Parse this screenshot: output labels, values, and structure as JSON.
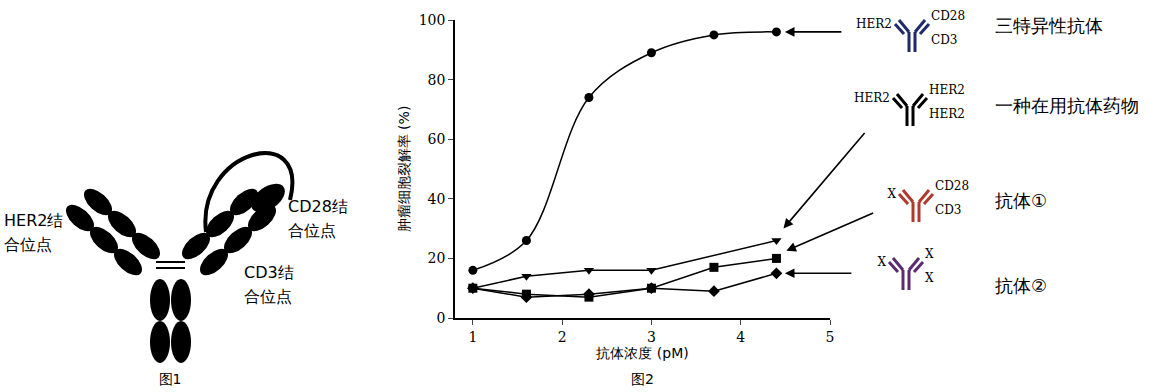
{
  "figure1": {
    "caption": "图1",
    "labels": {
      "her2": [
        "HER2结",
        "合位点"
      ],
      "cd28": [
        "CD28结",
        "合位点"
      ],
      "cd3": [
        "CD3结",
        "合位点"
      ]
    }
  },
  "chart_data": {
    "type": "line",
    "caption": "图2",
    "x_label": "抗体浓度 (pM)",
    "y_label": "肿瘤细胞裂解率 (%)",
    "x": [
      1,
      1.6,
      2.3,
      3,
      3.7,
      4.4
    ],
    "xlim": [
      0.8,
      5
    ],
    "xticks": [
      1,
      2,
      3,
      4,
      5
    ],
    "ylim": [
      0,
      100
    ],
    "yticks": [
      0,
      20,
      40,
      60,
      80,
      100
    ],
    "grid": false,
    "series": [
      {
        "name": "三特异性抗体",
        "color": "#000000",
        "marker": "circle",
        "line_style": "smooth",
        "values": [
          16,
          26,
          74,
          89,
          95,
          96
        ],
        "icon": {
          "left": "HER2",
          "right_top": "CD28",
          "right_bottom": "CD3",
          "color": "#1f2a6b"
        }
      },
      {
        "name": "一种在用抗体药物",
        "color": "#000000",
        "marker": "triangle-down",
        "line_style": "solid",
        "values": [
          10,
          14,
          16,
          16,
          null,
          26
        ],
        "icon": {
          "left": "HER2",
          "right_top": "HER2",
          "right_bottom": "HER2",
          "color": "#000000"
        }
      },
      {
        "name": "抗体①",
        "color": "#000000",
        "marker": "square",
        "line_style": "solid",
        "values": [
          10,
          8,
          7,
          10,
          17,
          20
        ],
        "icon": {
          "left": "X",
          "right_top": "CD28",
          "right_bottom": "CD3",
          "color": "#b03a2e"
        }
      },
      {
        "name": "抗体②",
        "color": "#000000",
        "marker": "diamond",
        "line_style": "solid",
        "values": [
          10,
          7,
          8,
          10,
          9,
          15
        ],
        "icon": {
          "left": "X",
          "right_top": "X",
          "right_bottom": "X",
          "color": "#5b2c6f"
        }
      }
    ]
  }
}
